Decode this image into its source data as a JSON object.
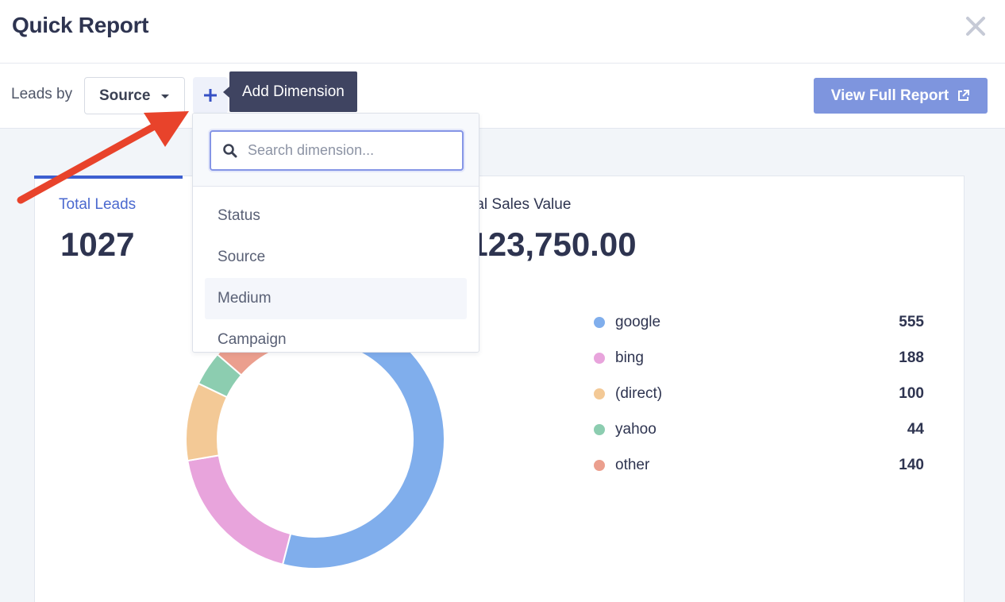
{
  "header": {
    "title": "Quick Report",
    "close_icon": "close-icon"
  },
  "toolbar": {
    "leads_by_label": "Leads by",
    "dimension_select": "Source",
    "add_dimension_tooltip": "Add Dimension",
    "view_full_report": "View Full Report"
  },
  "dropdown": {
    "search_placeholder": "Search dimension...",
    "items": [
      "Status",
      "Source",
      "Medium",
      "Campaign"
    ],
    "hovered_item": "Medium"
  },
  "metrics": [
    {
      "label": "Total Leads",
      "value": "1027"
    },
    {
      "label": "Total Sales Value",
      "value": "$123,750.00"
    }
  ],
  "chart_data": {
    "type": "pie",
    "categories": [
      "google",
      "bing",
      "(direct)",
      "yahoo",
      "other"
    ],
    "values": [
      555,
      188,
      100,
      44,
      140
    ],
    "colors": [
      "#80aeec",
      "#e8a4dc",
      "#f3c996",
      "#8ccdb0",
      "#eb9f8e"
    ]
  },
  "colors": {
    "accent": "#3d5fd0",
    "button": "#7e95de",
    "tooltip": "#3f4461",
    "annotation_arrow": "#e8432b"
  }
}
